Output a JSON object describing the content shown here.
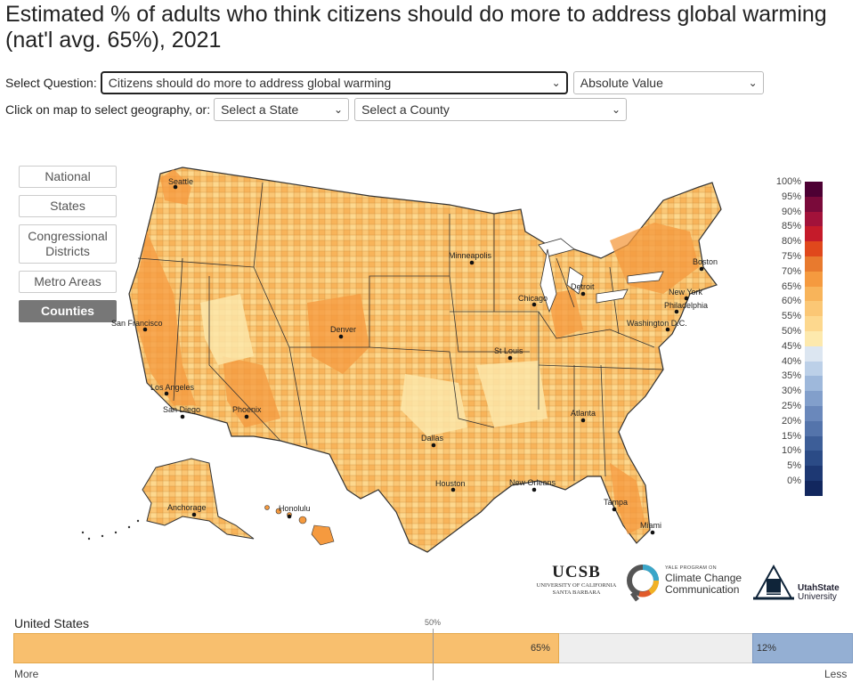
{
  "title": "Estimated % of adults who think citizens should do more to address global warming (nat'l avg. 65%), 2021",
  "controls": {
    "select_question_label": "Select Question:",
    "question_value": "Citizens should do more to address global warming",
    "mode_value": "Absolute Value",
    "geo_prompt": "Click on map to select geography, or:",
    "state_value": "Select a State",
    "county_value": "Select a County"
  },
  "geo_buttons": [
    {
      "label": "National",
      "active": false
    },
    {
      "label": "States",
      "active": false
    },
    {
      "label": "Congressional Districts",
      "active": false
    },
    {
      "label": "Metro Areas",
      "active": false
    },
    {
      "label": "Counties",
      "active": true
    }
  ],
  "cities": [
    "Seattle",
    "San Francisco",
    "Los Angeles",
    "San Diego",
    "Phoenix",
    "Denver",
    "Minneapolis",
    "Chicago",
    "Detroit",
    "St Louis",
    "Dallas",
    "Houston",
    "New Orleans",
    "Atlanta",
    "Tampa",
    "Miami",
    "Boston",
    "New York",
    "Philadelphia",
    "Washington D.C.",
    "Anchorage",
    "Honolulu"
  ],
  "legend": {
    "labels": [
      "100%",
      "95%",
      "90%",
      "85%",
      "80%",
      "75%",
      "70%",
      "65%",
      "60%",
      "55%",
      "50%",
      "45%",
      "40%",
      "35%",
      "30%",
      "25%",
      "20%",
      "15%",
      "10%",
      "5%",
      "0%"
    ],
    "colors": [
      "#4d0033",
      "#7a0a3a",
      "#a2123a",
      "#c51b2a",
      "#e0481c",
      "#e87a2e",
      "#f59a3f",
      "#f8b45a",
      "#fbc775",
      "#fdd88e",
      "#fde9ad",
      "#dce6f1",
      "#bcd0e8",
      "#9eb8db",
      "#829fcb",
      "#6a88bb",
      "#5474ab",
      "#3d5e98",
      "#2b4b86",
      "#1d3873",
      "#12275e"
    ]
  },
  "logos": {
    "ucsb_name": "UCSB",
    "ucsb_sub1": "UNIVERSITY OF CALIFORNIA",
    "ucsb_sub2": "SANTA BARBARA",
    "yale_top": "YALE PROGRAM ON",
    "yale_line1": "Climate Change",
    "yale_line2": "Communication",
    "usu_line1": "UtahState",
    "usu_line2": "University"
  },
  "summary": {
    "geo_name": "United States",
    "more_value": 65,
    "less_value": 12,
    "more_text": "65%",
    "less_text": "12%",
    "midpoint_label": "50%",
    "more_label": "More",
    "less_label": "Less"
  },
  "colors": {
    "map_base": "#fbc775",
    "map_light": "#fdd88e",
    "map_dark": "#f59a3f",
    "border": "#333333"
  }
}
